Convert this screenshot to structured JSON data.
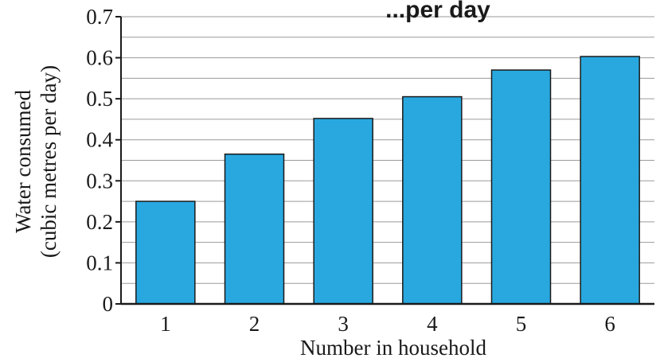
{
  "chart_data": {
    "type": "bar",
    "title": "...per day",
    "xlabel": "Number in household",
    "ylabel_lines": [
      "Water consumed",
      "(cubic metres per day)"
    ],
    "categories": [
      "1",
      "2",
      "3",
      "4",
      "5",
      "6"
    ],
    "values": [
      0.25,
      0.365,
      0.452,
      0.505,
      0.57,
      0.603
    ],
    "ylim": [
      0,
      0.7
    ],
    "yticks": [
      0,
      0.1,
      0.2,
      0.3,
      0.4,
      0.5,
      0.6,
      0.7
    ],
    "ytick_labels": [
      "0",
      "0.1",
      "0.2",
      "0.3",
      "0.4",
      "0.5",
      "0.6",
      "0.7"
    ],
    "minor_grid_step": 0.05,
    "grid": true,
    "legend": "none",
    "colors": {
      "bar_fill": "#29a8e0",
      "bar_stroke": "#1a1a1a",
      "grid": "#9a9a9a",
      "axis": "#1a1a1a"
    }
  }
}
